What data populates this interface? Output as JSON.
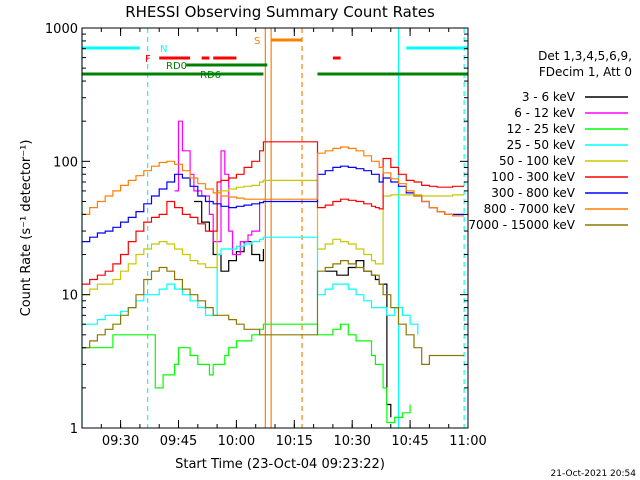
{
  "chart_data": {
    "type": "line",
    "title": "RHESSI Observing Summary Count Rates",
    "xlabel": "Start Time (23-Oct-04 09:23:22)",
    "ylabel": "Count Rate (s⁻¹ detector⁻¹)",
    "yscale": "log",
    "ylim": [
      1,
      1000
    ],
    "xlim_minutes": [
      -3,
      97
    ],
    "x_ticks": [
      {
        "label": "09:30",
        "min": 7
      },
      {
        "label": "09:45",
        "min": 22
      },
      {
        "label": "10:00",
        "min": 37
      },
      {
        "label": "10:15",
        "min": 52
      },
      {
        "label": "10:30",
        "min": 67
      },
      {
        "label": "10:45",
        "min": 82
      },
      {
        "label": "11:00",
        "min": 97
      }
    ],
    "y_ticks": [
      {
        "label": "1",
        "v": 1
      },
      {
        "label": "10",
        "v": 10
      },
      {
        "label": "100",
        "v": 100
      },
      {
        "label": "1000",
        "v": 1000
      }
    ],
    "legend_header": [
      "Det 1,3,4,5,6,9,",
      "FDecim 1, Att 0"
    ],
    "series": [
      {
        "name": "3 - 6 keV",
        "color": "#000000",
        "x": [
          -3,
          5,
          10,
          13,
          16,
          19,
          21,
          23,
          24,
          26,
          28,
          30,
          31,
          33,
          35,
          37,
          39,
          41,
          43,
          44,
          45,
          58,
          60,
          63,
          66,
          68,
          70,
          72,
          73,
          74,
          75,
          76,
          77,
          78,
          79,
          80,
          81
        ],
        "y": [
          null,
          null,
          null,
          null,
          null,
          null,
          null,
          null,
          null,
          50,
          35,
          30,
          20,
          15,
          18,
          21,
          25,
          20,
          18,
          22,
          null,
          null,
          15,
          14,
          16,
          18,
          15,
          14,
          13,
          12,
          12,
          1.5,
          1.2,
          null,
          null,
          null,
          null
        ]
      },
      {
        "name": "6 - 12 keV",
        "color": "#ff00ff",
        "x": [
          -3,
          5,
          10,
          13,
          16,
          19,
          21,
          22,
          23,
          25,
          26,
          28,
          30,
          31,
          33,
          34,
          35,
          36,
          38,
          40,
          41,
          43,
          44,
          45
        ],
        "y": [
          null,
          null,
          null,
          null,
          null,
          null,
          60,
          200,
          120,
          80,
          60,
          55,
          40,
          25,
          120,
          80,
          30,
          20,
          25,
          28,
          30,
          50,
          null,
          null
        ]
      },
      {
        "name": "12 - 25 keV",
        "color": "#00ff00",
        "x": [
          -3,
          -2,
          0,
          3,
          5,
          7,
          9,
          10,
          12,
          13,
          15,
          16,
          18,
          21,
          22,
          23,
          24,
          25,
          26,
          27,
          29,
          30,
          31,
          33,
          34,
          35,
          37,
          39,
          41,
          43,
          44,
          58,
          60,
          62,
          64,
          66,
          68,
          70,
          72,
          73,
          75,
          76,
          78,
          80,
          82
        ],
        "y": [
          4,
          4,
          4,
          4,
          5,
          5,
          5,
          5,
          5,
          5,
          5,
          2,
          2.5,
          3,
          4,
          4,
          4,
          3.5,
          3.5,
          3,
          3,
          2.5,
          3,
          3,
          3.5,
          4,
          4.5,
          4.5,
          5,
          5.5,
          6,
          5,
          5,
          5.5,
          6,
          5,
          4.5,
          4.5,
          3.5,
          3,
          2,
          1.1,
          1.2,
          1.3,
          1.5
        ]
      },
      {
        "name": "25 - 50 keV",
        "color": "#00ffff",
        "x": [
          -3,
          -1,
          1,
          3,
          5,
          7,
          9,
          11,
          13,
          15,
          17,
          19,
          21,
          23,
          25,
          27,
          29,
          31,
          32,
          33,
          35,
          37,
          39,
          41,
          43,
          44,
          58,
          60,
          62,
          64,
          66,
          68,
          70,
          72,
          74,
          76,
          78,
          80,
          82,
          84,
          86,
          88,
          90,
          92,
          94,
          96
        ],
        "y": [
          6,
          6,
          6.5,
          7,
          7,
          7.5,
          8,
          9,
          10,
          10,
          11,
          12,
          11,
          10,
          9,
          8,
          7,
          7,
          20,
          22,
          22,
          23,
          24,
          25,
          26,
          27,
          10,
          11,
          12,
          12,
          11,
          10,
          9,
          8,
          8,
          7,
          8,
          7,
          6,
          5,
          null,
          null,
          null,
          null,
          null,
          null
        ]
      },
      {
        "name": "50 - 100 keV",
        "color": "#c8c800",
        "x": [
          -3,
          -1,
          1,
          3,
          5,
          7,
          9,
          11,
          13,
          15,
          17,
          19,
          21,
          23,
          25,
          27,
          29,
          31,
          32,
          33,
          35,
          37,
          39,
          41,
          43,
          44,
          58,
          60,
          62,
          64,
          66,
          68,
          70,
          72,
          73,
          74,
          75,
          77,
          79,
          81,
          83,
          85,
          87,
          89,
          91,
          93,
          95,
          96
        ],
        "y": [
          10,
          11,
          12,
          12,
          13,
          15,
          17,
          20,
          22,
          24,
          25,
          24,
          22,
          20,
          18,
          17,
          16,
          16,
          60,
          60,
          62,
          64,
          65,
          66,
          70,
          72,
          22,
          24,
          26,
          25,
          24,
          22,
          20,
          18,
          17,
          17,
          55,
          56,
          56,
          56,
          56,
          55,
          55,
          55,
          55,
          56,
          56,
          56
        ]
      },
      {
        "name": "100 - 300 keV",
        "color": "#ff0000",
        "x": [
          -3,
          -1,
          1,
          3,
          5,
          7,
          9,
          11,
          13,
          15,
          17,
          19,
          21,
          23,
          25,
          27,
          29,
          31,
          32,
          33,
          35,
          37,
          39,
          41,
          43,
          44,
          58,
          60,
          62,
          64,
          66,
          68,
          70,
          72,
          73,
          74,
          75,
          77,
          79,
          81,
          83,
          85,
          87,
          89,
          91,
          93,
          95,
          96
        ],
        "y": [
          12,
          13,
          14,
          15,
          17,
          20,
          25,
          30,
          35,
          38,
          40,
          50,
          45,
          40,
          38,
          34,
          30,
          30,
          70,
          72,
          75,
          80,
          90,
          100,
          120,
          140,
          45,
          47,
          50,
          52,
          51,
          50,
          48,
          46,
          45,
          44,
          105,
          90,
          80,
          72,
          70,
          66,
          65,
          64,
          64,
          65,
          65,
          65
        ]
      },
      {
        "name": "300 - 800 keV",
        "color": "#0000ff",
        "x": [
          -3,
          -1,
          1,
          3,
          5,
          7,
          9,
          11,
          13,
          15,
          17,
          19,
          21,
          23,
          25,
          27,
          29,
          31,
          33,
          35,
          37,
          39,
          41,
          43,
          44,
          58,
          60,
          62,
          64,
          66,
          68,
          70,
          72,
          74,
          75,
          77,
          79,
          81,
          83,
          85,
          87,
          89,
          91,
          93,
          95,
          96
        ],
        "y": [
          25,
          27,
          29,
          30,
          32,
          35,
          38,
          42,
          48,
          55,
          62,
          70,
          80,
          75,
          65,
          55,
          50,
          48,
          46,
          45,
          46,
          47,
          48,
          49,
          50,
          80,
          85,
          90,
          92,
          90,
          88,
          85,
          80,
          70,
          75,
          70,
          65,
          58,
          55,
          50,
          45,
          42,
          40,
          40,
          40,
          40
        ]
      },
      {
        "name": "800 - 7000 keV",
        "color": "#ff8000",
        "x": [
          -3,
          -1,
          1,
          3,
          5,
          7,
          9,
          11,
          13,
          15,
          17,
          19,
          21,
          23,
          25,
          27,
          29,
          31,
          33,
          35,
          37,
          39,
          41,
          43,
          44,
          58,
          60,
          62,
          64,
          66,
          68,
          70,
          72,
          74,
          75,
          77,
          79,
          81,
          83,
          85,
          87,
          89,
          91,
          93,
          95,
          96
        ],
        "y": [
          40,
          45,
          50,
          55,
          60,
          66,
          72,
          78,
          85,
          92,
          98,
          100,
          95,
          85,
          75,
          68,
          62,
          58,
          55,
          54,
          53,
          52,
          52,
          52,
          52,
          115,
          120,
          125,
          128,
          125,
          120,
          110,
          100,
          90,
          82,
          74,
          68,
          60,
          55,
          50,
          45,
          42,
          40,
          39,
          39,
          39
        ]
      },
      {
        "name": "7000 - 15000 keV",
        "color": "#8c7800",
        "x": [
          -3,
          -1,
          1,
          3,
          5,
          7,
          9,
          11,
          13,
          15,
          17,
          19,
          21,
          23,
          25,
          27,
          29,
          31,
          33,
          35,
          37,
          39,
          41,
          43,
          44,
          58,
          60,
          62,
          64,
          66,
          68,
          70,
          72,
          74,
          75,
          77,
          79,
          81,
          83,
          85,
          87,
          89,
          91,
          93,
          95,
          96
        ],
        "y": [
          4,
          4.5,
          5,
          5.5,
          6,
          7,
          8,
          10,
          13,
          15,
          16,
          15,
          13,
          11,
          10,
          9,
          8,
          7,
          7,
          6.5,
          6,
          5.5,
          5.5,
          5,
          5,
          15,
          16,
          17,
          18,
          17,
          16,
          15,
          14,
          12,
          10,
          8,
          6,
          5,
          4,
          3,
          3.5,
          3.5,
          3.5,
          3.5,
          3.5,
          3.5
        ]
      }
    ],
    "flag_bars": [
      {
        "label": "N",
        "color": "#00ffff",
        "segments": [
          [
            -3,
            12
          ],
          [
            81,
            97
          ]
        ]
      },
      {
        "label": "F",
        "color": "#ff0000",
        "segments": [
          [
            17,
            25
          ],
          [
            28,
            30
          ],
          [
            31,
            37
          ],
          [
            62,
            64
          ]
        ]
      },
      {
        "label": "RD0",
        "color": "#008000",
        "segments": [
          [
            24,
            45
          ]
        ]
      },
      {
        "label": "RD6",
        "color": "#008000",
        "segments": [
          [
            -3,
            44
          ],
          [
            58,
            76
          ],
          [
            76,
            97
          ]
        ]
      },
      {
        "label": "S",
        "color": "#ff8000",
        "segments": [
          [
            46,
            54
          ]
        ]
      }
    ],
    "vertical_markers": [
      {
        "color": "#00ffff",
        "min": -3,
        "style": "solid"
      },
      {
        "color": "#00ffff",
        "min": 14,
        "style": "dashed"
      },
      {
        "color": "#ff8000",
        "min": 44.5,
        "style": "solid"
      },
      {
        "color": "#ff8000",
        "min": 46,
        "style": "solid"
      },
      {
        "color": "#ff8000",
        "min": 54,
        "style": "dashed"
      },
      {
        "color": "#00ffff",
        "min": 79,
        "style": "solid"
      },
      {
        "color": "#00ffff",
        "min": 96,
        "style": "dashed"
      }
    ],
    "footer": "21-Oct-2021 20:54"
  }
}
